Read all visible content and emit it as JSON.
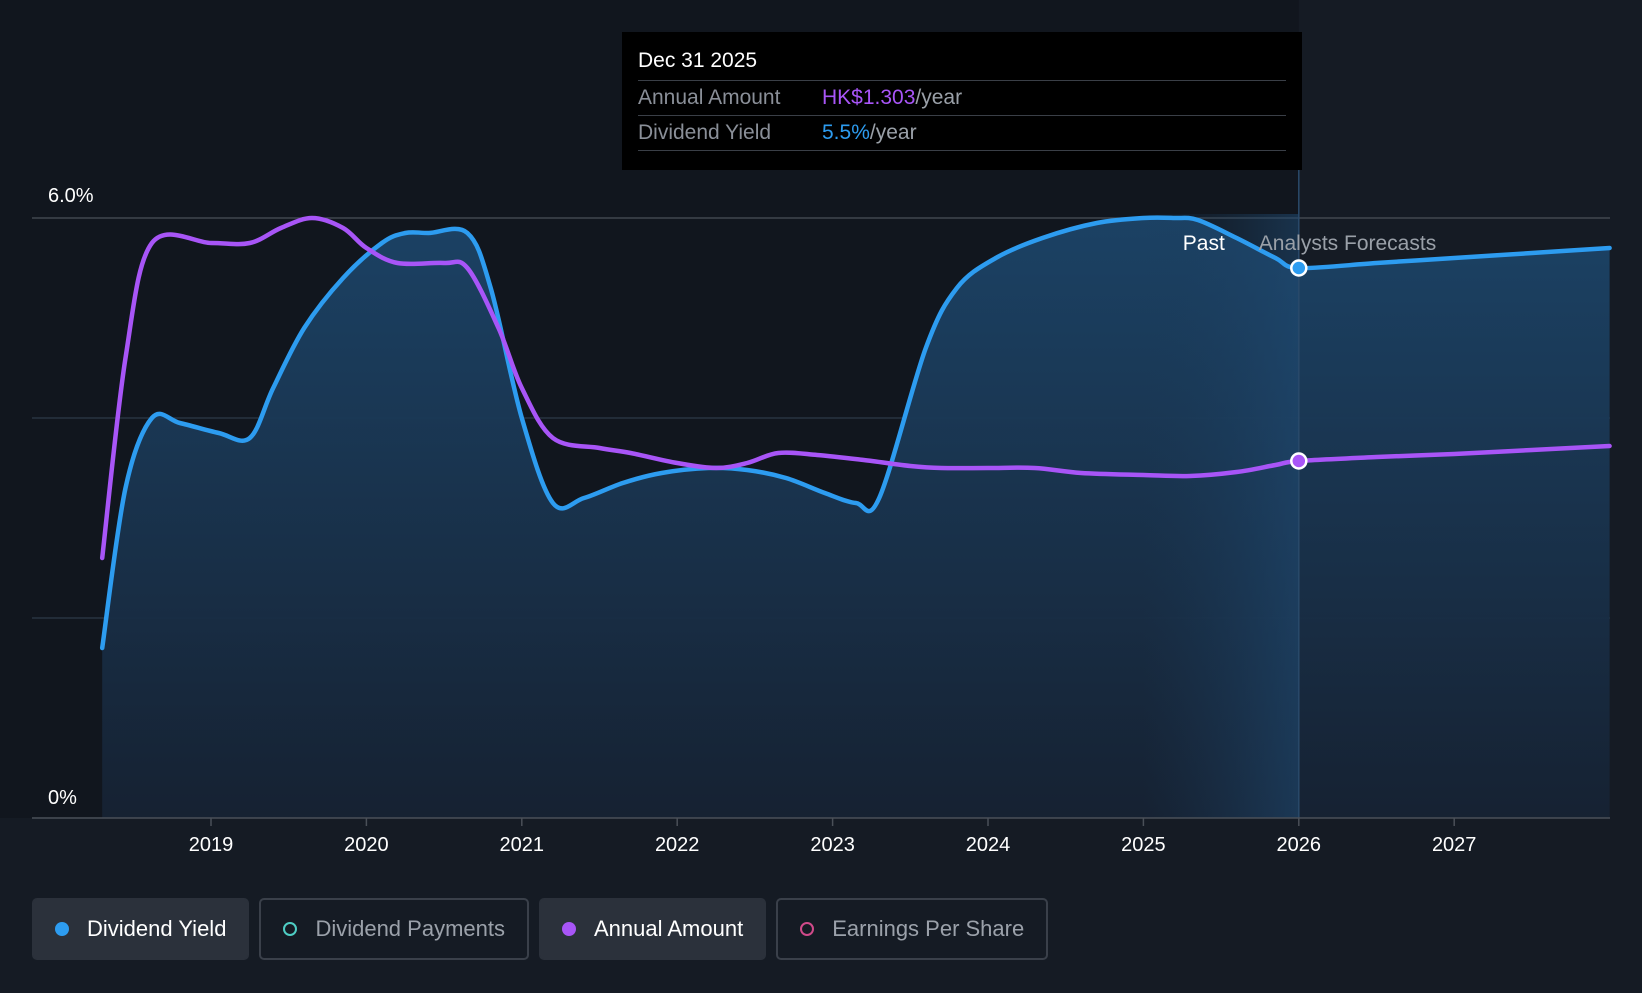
{
  "tooltip": {
    "date": "Dec 31 2025",
    "rows": [
      {
        "label": "Annual Amount",
        "value": "HK$1.303",
        "unit": "/year"
      },
      {
        "label": "Dividend Yield",
        "value": "5.5%",
        "unit": "/year"
      }
    ]
  },
  "labels": {
    "past": "Past",
    "forecast": "Analysts Forecasts"
  },
  "legend": [
    {
      "label": "Dividend Yield",
      "color": "#2d9cf0",
      "active": true,
      "filled": true
    },
    {
      "label": "Dividend Payments",
      "color": "#4ecdc4",
      "active": false,
      "filled": false
    },
    {
      "label": "Annual Amount",
      "color": "#a855f7",
      "active": true,
      "filled": true
    },
    {
      "label": "Earnings Per Share",
      "color": "#d04a8a",
      "active": false,
      "filled": false
    }
  ],
  "chart_data": {
    "type": "line",
    "title": "",
    "xlabel": "",
    "ylabel": "",
    "xlim": [
      2018.3,
      2028.0
    ],
    "ylim": [
      0,
      6.0
    ],
    "y_ticks": [
      {
        "value": 6.0,
        "label": "6.0%"
      },
      {
        "value": 0,
        "label": "0%"
      }
    ],
    "gridlines": [
      6.0,
      4.0,
      2.0
    ],
    "x_ticks": [
      "2019",
      "2020",
      "2021",
      "2022",
      "2023",
      "2024",
      "2025",
      "2026",
      "2027"
    ],
    "past_forecast_split": 2026.0,
    "highlight_point_x": 2026.0,
    "series": [
      {
        "name": "Dividend Yield",
        "color": "#2d9cf0",
        "area": true,
        "x": [
          2018.3,
          2018.45,
          2018.62,
          2018.8,
          2019.05,
          2019.25,
          2019.4,
          2019.6,
          2019.85,
          2020.1,
          2020.25,
          2020.4,
          2020.65,
          2020.8,
          2021.0,
          2021.2,
          2021.4,
          2021.65,
          2021.9,
          2022.2,
          2022.45,
          2022.7,
          2022.95,
          2023.15,
          2023.3,
          2023.6,
          2023.8,
          2024.05,
          2024.35,
          2024.7,
          2025.0,
          2025.2,
          2025.35,
          2025.6,
          2025.85,
          2026.0,
          2026.5,
          2027.0,
          2027.5,
          2028.0
        ],
        "values": [
          1.7,
          3.3,
          4.0,
          3.95,
          3.85,
          3.8,
          4.3,
          4.9,
          5.4,
          5.75,
          5.85,
          5.85,
          5.85,
          5.3,
          4.0,
          3.15,
          3.2,
          3.35,
          3.45,
          3.5,
          3.48,
          3.4,
          3.25,
          3.15,
          3.2,
          4.7,
          5.3,
          5.6,
          5.8,
          5.95,
          6.0,
          6.0,
          5.98,
          5.8,
          5.6,
          5.5,
          5.55,
          5.6,
          5.65,
          5.7
        ]
      },
      {
        "name": "Annual Amount",
        "color": "#a855f7",
        "area": false,
        "x": [
          2018.3,
          2018.45,
          2018.62,
          2019.0,
          2019.25,
          2019.45,
          2019.65,
          2019.85,
          2020.0,
          2020.2,
          2020.5,
          2020.65,
          2020.85,
          2021.0,
          2021.2,
          2021.5,
          2021.7,
          2022.0,
          2022.25,
          2022.45,
          2022.65,
          2022.9,
          2023.2,
          2023.5,
          2023.7,
          2024.0,
          2024.3,
          2024.6,
          2025.0,
          2025.3,
          2025.6,
          2025.85,
          2026.0,
          2026.5,
          2027.0,
          2027.5,
          2028.0
        ],
        "values": [
          2.6,
          4.6,
          5.75,
          5.75,
          5.75,
          5.9,
          6.0,
          5.9,
          5.7,
          5.55,
          5.55,
          5.5,
          4.9,
          4.3,
          3.8,
          3.7,
          3.65,
          3.55,
          3.5,
          3.55,
          3.65,
          3.63,
          3.58,
          3.52,
          3.5,
          3.5,
          3.5,
          3.45,
          3.43,
          3.42,
          3.46,
          3.53,
          3.57,
          3.61,
          3.64,
          3.68,
          3.72
        ]
      }
    ]
  }
}
